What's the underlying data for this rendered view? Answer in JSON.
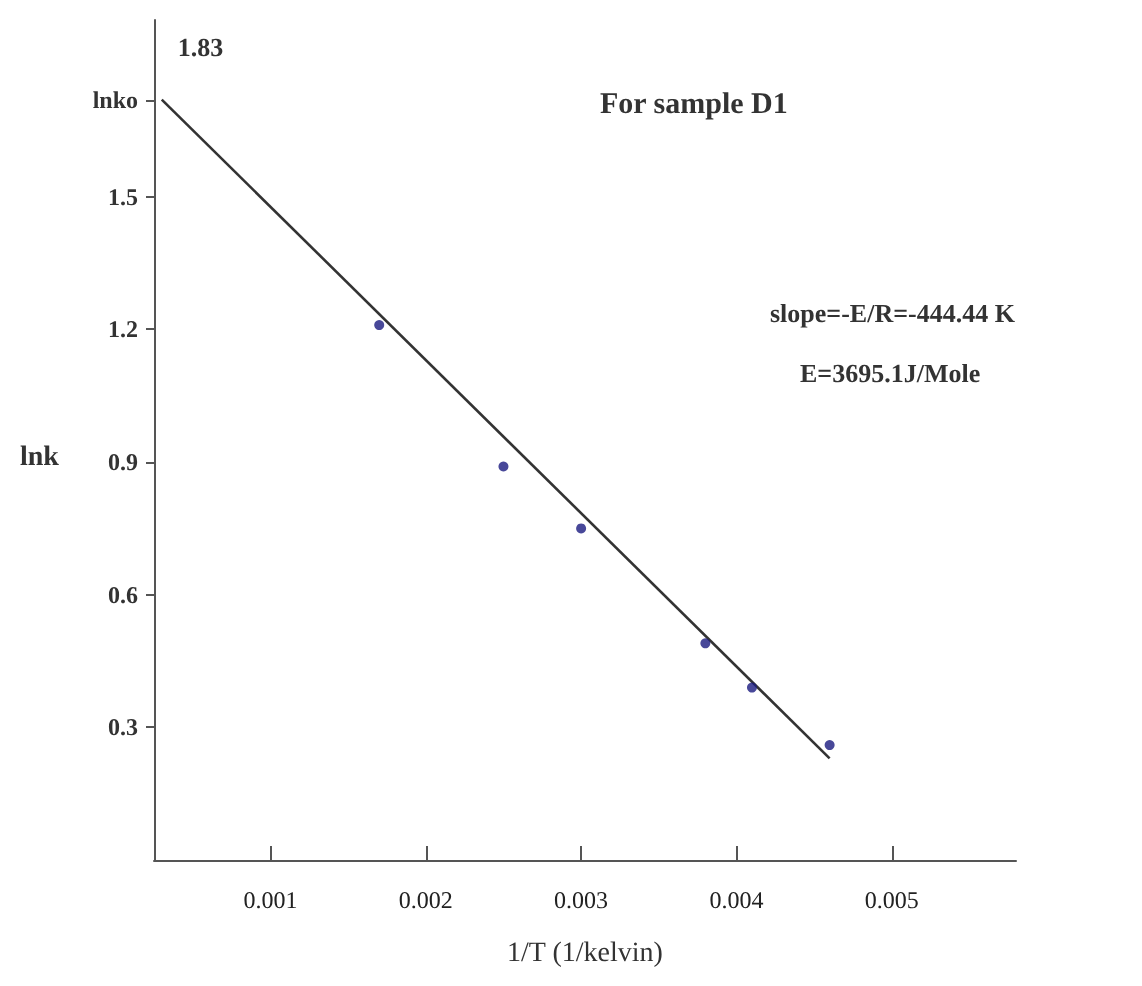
{
  "chart_data": {
    "type": "scatter",
    "title": "For sample D1",
    "xlabel": "1/T (1/kelvin)",
    "ylabel": "lnk",
    "annotations": [
      {
        "text": "1.83",
        "x": 0.0003,
        "y": 1.72
      },
      "slope=-E/R=-444.44 K",
      "E=3695.1J/Mole"
    ],
    "series": [
      {
        "type": "line",
        "color": "#333333",
        "x": [
          0.0003,
          0.0046
        ],
        "values": [
          1.72,
          0.23
        ],
        "marker": "none"
      },
      {
        "color": "#1a1a80",
        "x": [
          0.0017,
          0.0025,
          0.003,
          0.0038,
          0.0041,
          0.0046
        ],
        "values": [
          1.21,
          0.89,
          0.75,
          0.49,
          0.39,
          0.26
        ],
        "marker": "circle"
      }
    ],
    "xlim": [
      0.00025,
      0.0058
    ],
    "xticks": [
      0.001,
      0.002,
      0.003,
      0.004,
      0.005
    ],
    "ylim": [
      0,
      1.9
    ],
    "yticks": [
      0.3,
      0.6,
      0.9,
      1.2,
      1.5,
      {
        "value": 1.72,
        "label": "lnko"
      }
    ],
    "grid": false
  }
}
